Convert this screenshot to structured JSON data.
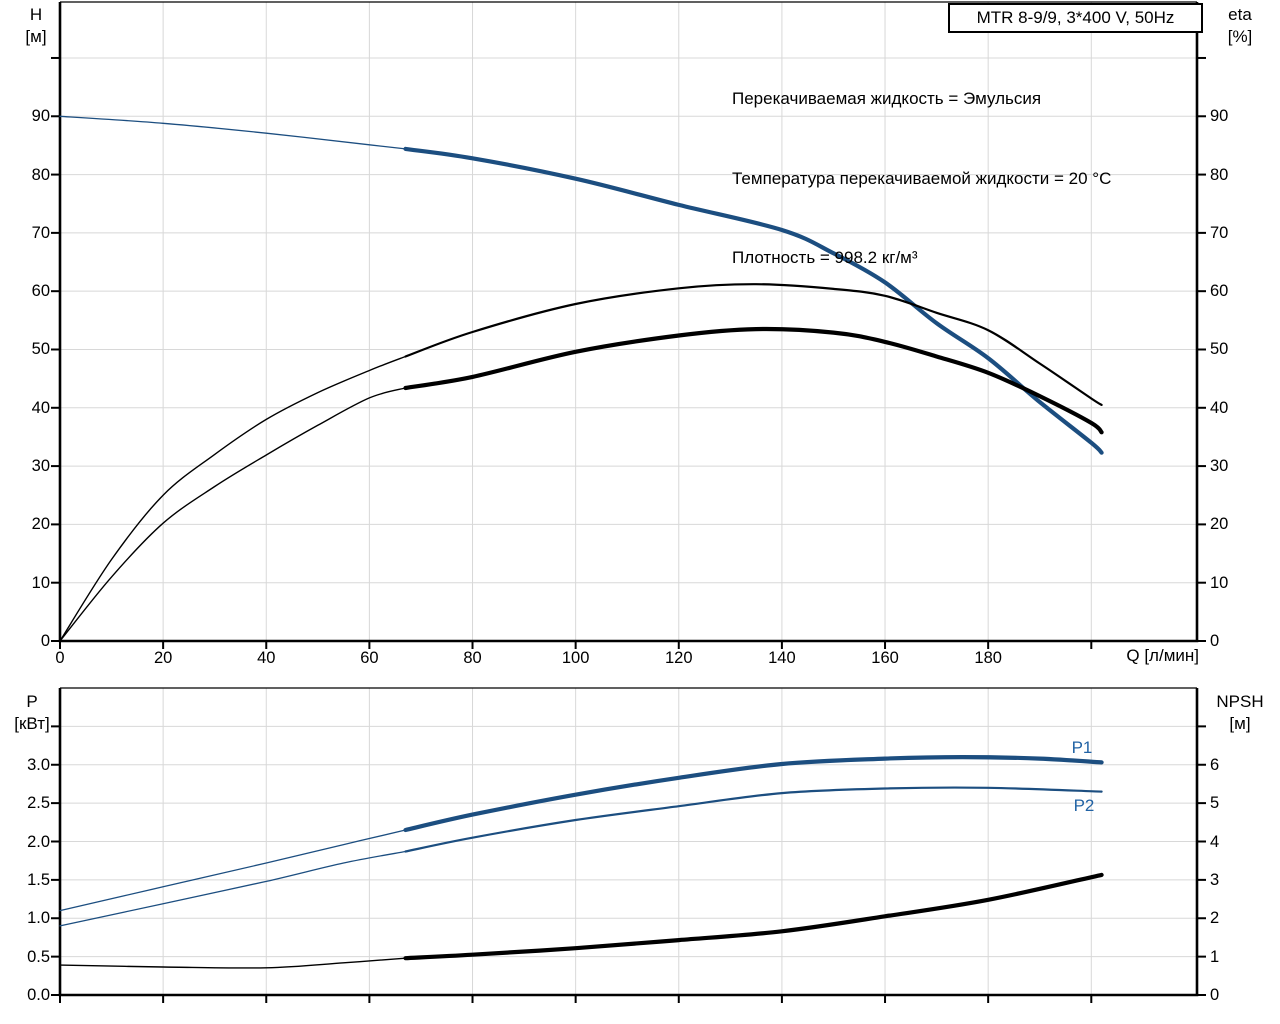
{
  "header": {
    "title_box": "MTR 8-9/9, 3*400 V, 50Hz",
    "annotations": [
      "Перекачиваемая жидкость = Эмульсия",
      "Температура перекачиваемой жидкости = 20 °C",
      "Плотность = 998.2 кг/м³"
    ]
  },
  "top_chart_labels": {
    "y_left_title": "H\n[м]",
    "y_right_title": "eta\n[%]",
    "x_axis_label": "Q [л/мин]"
  },
  "bottom_chart_labels": {
    "y_left_title": "P\n[кВт]",
    "y_right_title": "NPSH\n[м]",
    "p1_label": "P1",
    "p2_label": "P2"
  },
  "colors": {
    "curve_blue": "#1c4e80",
    "label_blue": "#2263a5",
    "curve_black": "#000000",
    "grid": "#d8d8d8",
    "axis": "#000000"
  },
  "chart_data": [
    {
      "id": "top",
      "type": "line",
      "title": "MTR 8-9/9, 3*400 V, 50Hz",
      "xlabel": "Q [л/мин]",
      "ylabel_left": "H [м]",
      "ylabel_right": "eta [%]",
      "xlim": [
        0,
        220.5
      ],
      "ylim_left": [
        0,
        109.6
      ],
      "ylim_right": [
        0,
        109.6
      ],
      "grid": true,
      "x_ticks": {
        "values": [
          0,
          20,
          40,
          60,
          80,
          100,
          120,
          140,
          160,
          180,
          200
        ],
        "labels": [
          "0",
          "20",
          "40",
          "60",
          "80",
          "100",
          "120",
          "140",
          "160",
          "180",
          ""
        ]
      },
      "y_ticks_left": {
        "values": [
          0,
          10,
          20,
          30,
          40,
          50,
          60,
          70,
          80,
          90,
          100
        ],
        "labels": [
          "0",
          "10",
          "20",
          "30",
          "40",
          "50",
          "60",
          "70",
          "80",
          "90",
          ""
        ]
      },
      "y_ticks_right": {
        "values": [
          0,
          10,
          20,
          30,
          40,
          50,
          60,
          70,
          80,
          90,
          100
        ],
        "labels": [
          "0",
          "10",
          "20",
          "30",
          "40",
          "50",
          "60",
          "70",
          "80",
          "90",
          ""
        ]
      },
      "series": [
        {
          "name": "QH head curve",
          "axis": "left",
          "color": "curve_blue",
          "emphasis_from_x": 67,
          "width_thin": 1.3,
          "width_thick": 4.2,
          "points": [
            [
              0,
              90
            ],
            [
              20,
              88.8
            ],
            [
              40,
              87.1
            ],
            [
              60,
              85.1
            ],
            [
              67,
              84.4
            ],
            [
              80,
              82.8
            ],
            [
              100,
              79.3
            ],
            [
              120,
              74.8
            ],
            [
              140,
              70.5
            ],
            [
              150,
              66.5
            ],
            [
              160,
              61.5
            ],
            [
              170,
              54.5
            ],
            [
              180,
              48.5
            ],
            [
              190,
              41
            ],
            [
              200,
              34
            ],
            [
              202,
              32.3
            ]
          ]
        },
        {
          "name": "eta pump efficiency",
          "axis": "right",
          "color": "curve_black",
          "emphasis_from_x": 67,
          "width_thin": 1.4,
          "width_thick": 2.2,
          "points": [
            [
              0,
              0
            ],
            [
              10,
              14
            ],
            [
              20,
              25
            ],
            [
              30,
              32
            ],
            [
              40,
              38
            ],
            [
              50,
              42.6
            ],
            [
              60,
              46.4
            ],
            [
              67,
              48.8
            ],
            [
              80,
              53
            ],
            [
              100,
              57.8
            ],
            [
              120,
              60.5
            ],
            [
              135,
              61.2
            ],
            [
              150,
              60.4
            ],
            [
              160,
              59.2
            ],
            [
              170,
              56.3
            ],
            [
              180,
              53.3
            ],
            [
              190,
              47.6
            ],
            [
              200,
              41.6
            ],
            [
              202,
              40.5
            ]
          ]
        },
        {
          "name": "eta pump plus motor efficiency",
          "axis": "right",
          "color": "curve_black",
          "emphasis_from_x": 67,
          "width_thin": 1.4,
          "width_thick": 4.2,
          "points": [
            [
              0,
              0
            ],
            [
              10,
              11
            ],
            [
              20,
              20.2
            ],
            [
              30,
              26.5
            ],
            [
              40,
              31.9
            ],
            [
              50,
              37
            ],
            [
              60,
              41.7
            ],
            [
              67,
              43.4
            ],
            [
              80,
              45.3
            ],
            [
              100,
              49.6
            ],
            [
              120,
              52.4
            ],
            [
              135,
              53.5
            ],
            [
              150,
              52.9
            ],
            [
              160,
              51.3
            ],
            [
              170,
              48.8
            ],
            [
              180,
              46
            ],
            [
              190,
              42
            ],
            [
              200,
              37.4
            ],
            [
              202,
              35.8
            ]
          ]
        }
      ]
    },
    {
      "id": "bottom",
      "type": "line",
      "xlabel": "",
      "ylabel_left": "P [кВт]",
      "ylabel_right": "NPSH [м]",
      "xlim": [
        0,
        220.5
      ],
      "ylim_left": [
        0,
        4
      ],
      "ylim_right": [
        0,
        8
      ],
      "grid": true,
      "x_ticks": {
        "values": [
          0,
          20,
          40,
          60,
          80,
          100,
          120,
          140,
          160,
          180,
          200
        ],
        "labels": [
          "",
          "",
          "",
          "",
          "",
          "",
          "",
          "",
          "",
          "",
          ""
        ]
      },
      "y_ticks_left": {
        "values": [
          0,
          0.5,
          1,
          1.5,
          2,
          2.5,
          3,
          3.5
        ],
        "labels": [
          "0.0",
          "0.5",
          "1.0",
          "1.5",
          "2.0",
          "2.5",
          "3.0",
          ""
        ]
      },
      "y_ticks_right": {
        "values": [
          0,
          1,
          2,
          3,
          4,
          5,
          6,
          7
        ],
        "labels": [
          "0",
          "1",
          "2",
          "3",
          "4",
          "5",
          "6",
          ""
        ]
      },
      "series": [
        {
          "name": "P1 power input",
          "axis": "left",
          "color": "curve_blue",
          "emphasis_from_x": 67,
          "width_thin": 1.3,
          "width_thick": 4.2,
          "points": [
            [
              0,
              1.1
            ],
            [
              20,
              1.41
            ],
            [
              40,
              1.72
            ],
            [
              55,
              1.96
            ],
            [
              67,
              2.15
            ],
            [
              80,
              2.35
            ],
            [
              100,
              2.61
            ],
            [
              120,
              2.83
            ],
            [
              140,
              3.01
            ],
            [
              160,
              3.08
            ],
            [
              175,
              3.1
            ],
            [
              190,
              3.08
            ],
            [
              202,
              3.03
            ]
          ]
        },
        {
          "name": "P2 shaft power",
          "axis": "left",
          "color": "curve_blue",
          "emphasis_from_x": 67,
          "width_thin": 1.3,
          "width_thick": 2.2,
          "points": [
            [
              0,
              0.9
            ],
            [
              20,
              1.19
            ],
            [
              40,
              1.48
            ],
            [
              55,
              1.72
            ],
            [
              67,
              1.87
            ],
            [
              80,
              2.05
            ],
            [
              100,
              2.28
            ],
            [
              120,
              2.46
            ],
            [
              140,
              2.63
            ],
            [
              160,
              2.69
            ],
            [
              180,
              2.7
            ],
            [
              202,
              2.65
            ]
          ]
        },
        {
          "name": "NPSH curve",
          "axis": "right",
          "color": "curve_black",
          "emphasis_from_x": 67,
          "width_thin": 1.4,
          "width_thick": 4.2,
          "points": [
            [
              0,
              0.78
            ],
            [
              20,
              0.73
            ],
            [
              40,
              0.71
            ],
            [
              55,
              0.84
            ],
            [
              67,
              0.96
            ],
            [
              80,
              1.05
            ],
            [
              100,
              1.22
            ],
            [
              120,
              1.43
            ],
            [
              140,
              1.66
            ],
            [
              160,
              2.05
            ],
            [
              180,
              2.48
            ],
            [
              202,
              3.13
            ]
          ]
        }
      ]
    }
  ]
}
